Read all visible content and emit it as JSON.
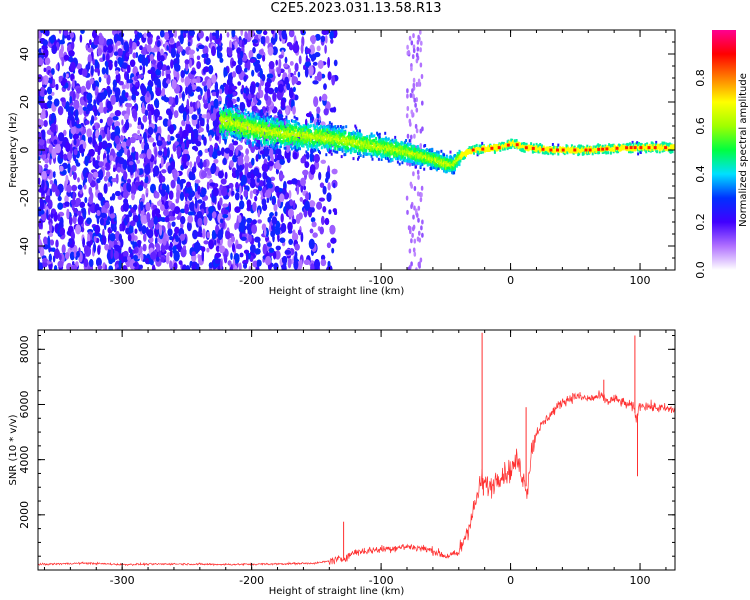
{
  "title": "C2E5.2023.031.13.58.R13",
  "chart_data": [
    {
      "type": "heatmap",
      "xlabel": "Height of straight line (km)",
      "ylabel": "Frequency (Hz)",
      "xlim": [
        -365,
        127
      ],
      "ylim": [
        -50,
        50
      ],
      "xticks": [
        -300,
        -200,
        -100,
        0,
        100
      ],
      "yticks": [
        -40,
        -20,
        0,
        20,
        40
      ],
      "colorbar": {
        "label": "Normalized spectral amplitude",
        "range": [
          0,
          1
        ],
        "ticks": [
          "0.0",
          "0.2",
          "0.4",
          "0.6",
          "0.8"
        ],
        "colors": [
          "#ffffff",
          "#b070ff",
          "#4000ff",
          "#0030ff",
          "#00e0ff",
          "#00ff40",
          "#a0ff00",
          "#ffff00",
          "#ff8000",
          "#ff0000",
          "#ff0090"
        ]
      },
      "ridge": {
        "x": [
          -220,
          -200,
          -180,
          -160,
          -140,
          -120,
          -100,
          -80,
          -60,
          -50,
          -45,
          -38,
          -30,
          -20,
          -10,
          -3,
          0,
          10,
          30,
          60,
          90,
          127
        ],
        "y": [
          12,
          9,
          7,
          6,
          5,
          3,
          1,
          -1,
          -4,
          -6,
          -6,
          -2,
          0,
          0.5,
          1,
          2,
          3,
          1,
          0,
          0,
          1,
          1
        ]
      }
    },
    {
      "type": "line",
      "xlabel": "Height of straight line (km)",
      "ylabel": "SNR (10 * v/v)",
      "xlim": [
        -365,
        127
      ],
      "ylim": [
        0,
        8700
      ],
      "xticks": [
        -300,
        -200,
        -100,
        0,
        100
      ],
      "yticks": [
        2000,
        4000,
        6000,
        8000
      ],
      "series": [
        {
          "color": "#ff3030",
          "x": [
            -365,
            -330,
            -300,
            -260,
            -220,
            -180,
            -150,
            -130,
            -120,
            -110,
            -100,
            -90,
            -80,
            -70,
            -60,
            -50,
            -40,
            -30,
            -25,
            -22,
            -20,
            -15,
            -10,
            -5,
            0,
            5,
            10,
            13,
            16,
            20,
            30,
            40,
            50,
            60,
            70,
            75,
            80,
            90,
            95,
            97,
            100,
            110,
            127
          ],
          "y": [
            200,
            250,
            200,
            220,
            200,
            220,
            250,
            400,
            650,
            700,
            750,
            800,
            850,
            800,
            700,
            500,
            600,
            1900,
            2800,
            3300,
            3100,
            3000,
            3400,
            3500,
            3600,
            4000,
            3300,
            2900,
            4300,
            5000,
            5600,
            6100,
            6300,
            6200,
            6300,
            6100,
            6200,
            6000,
            5900,
            5500,
            6000,
            5900,
            5800
          ]
        }
      ],
      "spikes": [
        {
          "x": -129,
          "y": 1750
        },
        {
          "x": -22,
          "y": 8600
        },
        {
          "x": -21,
          "y": 2700
        },
        {
          "x": 12,
          "y": 5900
        },
        {
          "x": 72,
          "y": 6900
        },
        {
          "x": 96,
          "y": 8500
        },
        {
          "x": 98,
          "y": 3400
        }
      ]
    }
  ]
}
